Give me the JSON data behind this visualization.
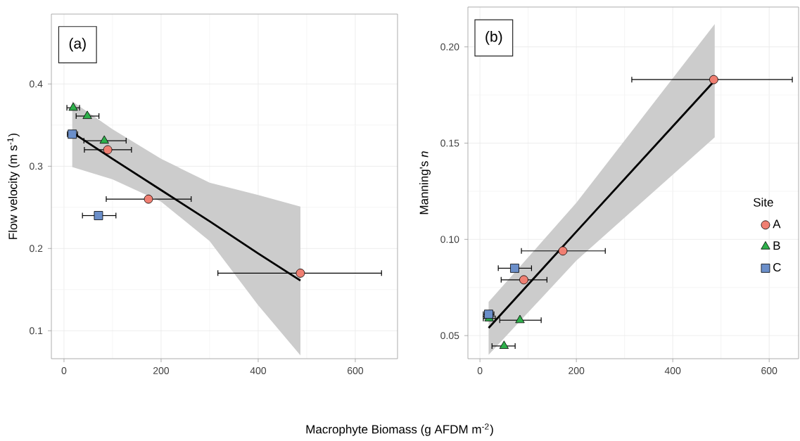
{
  "chart_data": [
    {
      "type": "scatter",
      "title": "(a)",
      "xlabel": "Macrophyte Biomass (g AFDM m$^{-2}$)",
      "ylabel": "Flow velocity (m s$^{-1}$)",
      "xlim": [
        -26,
        687
      ],
      "ylim": [
        0.066,
        0.485
      ],
      "xticks": [
        0,
        200,
        400,
        600
      ],
      "yticks": [
        0.1,
        0.2,
        0.3,
        0.4
      ],
      "grid": true,
      "legend": false,
      "series": [
        {
          "type": "line",
          "color": "#000000",
          "marker": "none",
          "line_style": "solid",
          "x": [
            17,
            100,
            200,
            300,
            400,
            487
          ],
          "values": [
            0.341,
            0.309,
            0.271,
            0.233,
            0.194,
            0.161
          ],
          "lower": [
            0.299,
            0.284,
            0.257,
            0.209,
            0.131,
            0.07
          ],
          "upper": [
            0.379,
            0.345,
            0.309,
            0.28,
            0.265,
            0.251
          ]
        },
        {
          "color": "#f07f72",
          "marker": "circle",
          "x": [
            90,
            174,
            487
          ],
          "values": [
            0.32,
            0.26,
            0.17
          ],
          "xerrors": [
            [
              42,
              139
            ],
            [
              87,
              262
            ],
            [
              317,
              654
            ]
          ]
        },
        {
          "color": "#2eb04b",
          "marker": "triangle",
          "x": [
            19,
            48,
            83
          ],
          "values": [
            0.371,
            0.361,
            0.331
          ],
          "xerrors": [
            [
              6,
              32
            ],
            [
              25,
              72
            ],
            [
              41,
              128
            ]
          ]
        },
        {
          "color": "#6b8fca",
          "marker": "square",
          "x": [
            17,
            71
          ],
          "values": [
            0.339,
            0.24
          ],
          "xerrors": [
            [
              7,
              28
            ],
            [
              38,
              107
            ]
          ]
        }
      ]
    },
    {
      "type": "scatter",
      "title": "(b)",
      "ylabel": "Manning's *n*",
      "xlim": [
        -25,
        661
      ],
      "ylim": [
        0.038,
        0.2207
      ],
      "xticks": [
        0,
        200,
        400,
        600
      ],
      "yticks": [
        {
          "value": 0.05,
          "label": "0.05"
        },
        {
          "value": 0.1,
          "label": "0.10"
        },
        {
          "value": 0.15,
          "label": "0.15"
        },
        {
          "value": 0.2,
          "label": "0.20"
        }
      ],
      "grid": true,
      "legend": "right",
      "legend_title": "Site",
      "series": [
        {
          "type": "line",
          "color": "#000000",
          "marker": "none",
          "line_style": "solid",
          "x": [
            18,
            200,
            487
          ],
          "values": [
            0.054,
            0.104,
            0.1825
          ],
          "lower": [
            0.04,
            0.089,
            0.153
          ],
          "upper": [
            0.0675,
            0.119,
            0.2118
          ]
        },
        {
          "name": "A",
          "color": "#f07f72",
          "marker": "circle",
          "x": [
            485,
            172,
            91
          ],
          "values": [
            0.183,
            0.094,
            0.079
          ],
          "xerrors": [
            [
              315,
              648
            ],
            [
              86,
              260
            ],
            [
              44,
              139
            ]
          ]
        },
        {
          "name": "B",
          "color": "#2eb04b",
          "marker": "triangle",
          "x": [
            83,
            50,
            19
          ],
          "values": [
            0.058,
            0.0446,
            0.0589
          ],
          "xerrors": [
            [
              41,
              127
            ],
            [
              25,
              73
            ],
            [
              7,
              32
            ]
          ]
        },
        {
          "name": "C",
          "color": "#6b8fca",
          "marker": "square",
          "x": [
            72,
            18
          ],
          "values": [
            0.085,
            0.0611
          ],
          "xerrors": [
            [
              38,
              107
            ],
            [
              7,
              29
            ]
          ]
        }
      ]
    }
  ]
}
